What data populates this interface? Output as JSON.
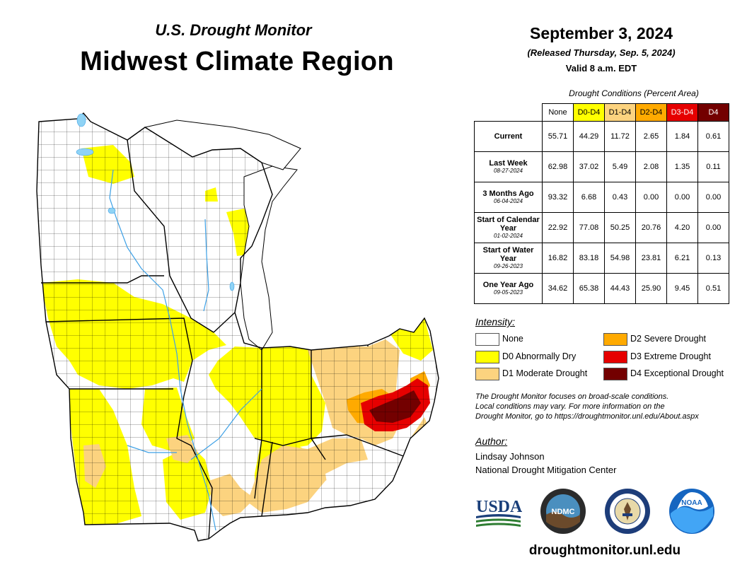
{
  "header": {
    "subtitle": "U.S. Drought Monitor",
    "title": "Midwest Climate Region",
    "date": "September 3, 2024",
    "released": "(Released Thursday, Sep. 5, 2024)",
    "valid": "Valid 8 a.m. EDT"
  },
  "table": {
    "caption": "Drought Conditions (Percent Area)",
    "columns": [
      "None",
      "D0-D4",
      "D1-D4",
      "D2-D4",
      "D3-D4",
      "D4"
    ],
    "column_colors": [
      "#ffffff",
      "#ffff00",
      "#fcd37f",
      "#ffaa00",
      "#e60000",
      "#730000"
    ],
    "rows": [
      {
        "label": "Current",
        "sublabel": "",
        "values": [
          "55.71",
          "44.29",
          "11.72",
          "2.65",
          "1.84",
          "0.61"
        ]
      },
      {
        "label": "Last Week",
        "sublabel": "08-27-2024",
        "values": [
          "62.98",
          "37.02",
          "5.49",
          "2.08",
          "1.35",
          "0.11"
        ]
      },
      {
        "label": "3 Months Ago",
        "sublabel": "06-04-2024",
        "values": [
          "93.32",
          "6.68",
          "0.43",
          "0.00",
          "0.00",
          "0.00"
        ]
      },
      {
        "label": "Start of Calendar Year",
        "sublabel": "01-02-2024",
        "values": [
          "22.92",
          "77.08",
          "50.25",
          "20.76",
          "4.20",
          "0.00"
        ]
      },
      {
        "label": "Start of Water Year",
        "sublabel": "09-26-2023",
        "values": [
          "16.82",
          "83.18",
          "54.98",
          "23.81",
          "6.21",
          "0.13"
        ]
      },
      {
        "label": "One Year Ago",
        "sublabel": "09-05-2023",
        "values": [
          "34.62",
          "65.38",
          "44.43",
          "25.90",
          "9.45",
          "0.51"
        ]
      }
    ]
  },
  "legend": {
    "title": "Intensity:",
    "items": [
      {
        "label": "None",
        "color": "#ffffff"
      },
      {
        "label": "D0 Abnormally Dry",
        "color": "#ffff00"
      },
      {
        "label": "D1 Moderate Drought",
        "color": "#fcd37f"
      },
      {
        "label": "D2 Severe Drought",
        "color": "#ffaa00"
      },
      {
        "label": "D3 Extreme Drought",
        "color": "#e60000"
      },
      {
        "label": "D4 Exceptional Drought",
        "color": "#730000"
      }
    ]
  },
  "note": {
    "line1": "The Drought Monitor focuses on broad-scale conditions.",
    "line2": "Local conditions may vary. For more information on the",
    "line3": "Drought Monitor, go to https://droughtmonitor.unl.edu/About.aspx"
  },
  "author": {
    "title": "Author:",
    "name": "Lindsay Johnson",
    "org": "National Drought Mitigation Center"
  },
  "logos": {
    "usda": "USDA",
    "ndmc": "NDMC",
    "noaa": "NOAA"
  },
  "footer": {
    "url": "droughtmonitor.unl.edu"
  },
  "map": {
    "background": "#ffffff",
    "water_color": "#8fd3f5",
    "border_color": "#000000"
  }
}
